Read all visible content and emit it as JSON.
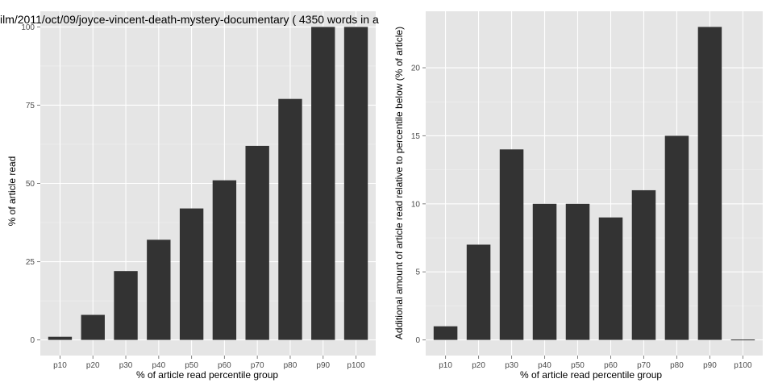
{
  "chart_data": [
    {
      "type": "bar",
      "title": "ilm/2011/oct/09/joyce-vincent-death-mystery-documentary ( 4350 words in a",
      "xlabel": "% of article read percentile group",
      "ylabel": "% of article read",
      "categories": [
        "p10",
        "p20",
        "p30",
        "p40",
        "p50",
        "p60",
        "p70",
        "p80",
        "p90",
        "p100"
      ],
      "values": [
        1,
        8,
        22,
        32,
        42,
        51,
        62,
        77,
        100,
        100
      ],
      "ylim": [
        -5,
        105
      ],
      "yticks": [
        0,
        25,
        50,
        75,
        100
      ],
      "ytick_labels": [
        "0",
        "25",
        "50",
        "75",
        "100"
      ],
      "grid": true,
      "bar_color": "#333333",
      "panel_background": "#e5e5e5",
      "grid_color": "#ffffff"
    },
    {
      "type": "bar",
      "title": "",
      "xlabel": "% of article read percentile group",
      "ylabel": "Additional amount of article read relative to percentile below (% of article)",
      "categories": [
        "p10",
        "p20",
        "p30",
        "p40",
        "p50",
        "p60",
        "p70",
        "p80",
        "p90",
        "p100"
      ],
      "values": [
        1,
        7,
        14,
        10,
        10,
        9,
        11,
        15,
        23,
        0
      ],
      "ylim": [
        -1.15,
        24.15
      ],
      "yticks": [
        0,
        5,
        10,
        15,
        20
      ],
      "ytick_labels": [
        "0",
        "5",
        "10",
        "15",
        "20"
      ],
      "grid": true,
      "bar_color": "#333333",
      "panel_background": "#e5e5e5",
      "grid_color": "#ffffff"
    }
  ]
}
